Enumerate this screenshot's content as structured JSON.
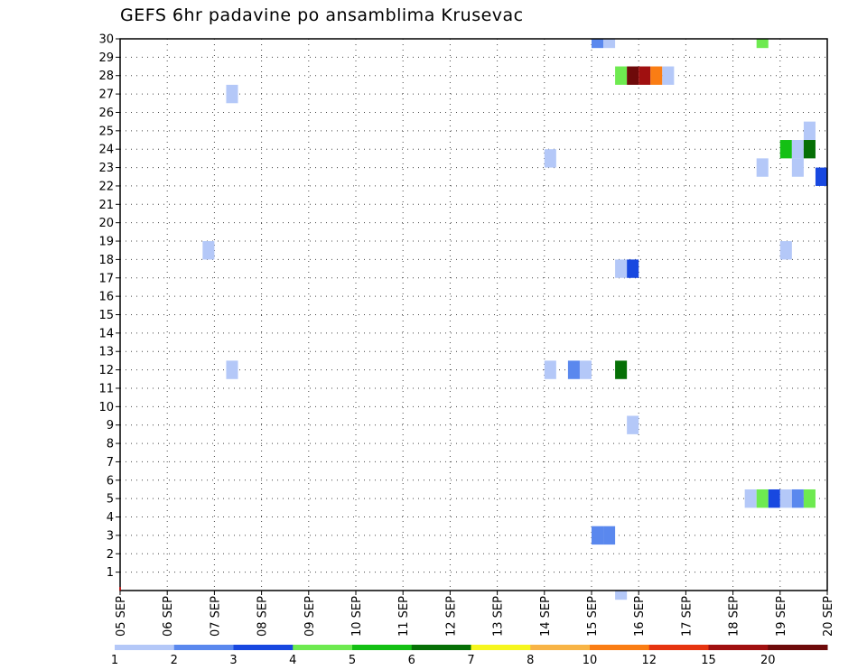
{
  "chart_data": {
    "type": "heatmap",
    "title": "GEFS 6hr padavine po ansamblima Krusevac",
    "xlabel": "",
    "ylabel": "",
    "x_tick_labels": [
      "05 SEP",
      "06 SEP",
      "07 SEP",
      "08 SEP",
      "09 SEP",
      "10 SEP",
      "11 SEP",
      "12 SEP",
      "13 SEP",
      "14 SEP",
      "15 SEP",
      "16 SEP",
      "17 SEP",
      "18 SEP",
      "19 SEP",
      "20 SEP"
    ],
    "x_range_days": [
      0,
      15
    ],
    "y_tick_labels": [
      "1",
      "2",
      "3",
      "4",
      "5",
      "6",
      "7",
      "8",
      "9",
      "10",
      "11",
      "12",
      "13",
      "14",
      "15",
      "16",
      "17",
      "18",
      "19",
      "20",
      "21",
      "22",
      "23",
      "24",
      "25",
      "26",
      "27",
      "28",
      "29",
      "30"
    ],
    "y_range": [
      0,
      30
    ],
    "grid": true,
    "time_step_hours": 6,
    "colorbar": {
      "labels": [
        "1",
        "2",
        "3",
        "4",
        "5",
        "6",
        "7",
        "8",
        "10",
        "12",
        "15",
        "20"
      ],
      "colors": [
        "#b4c8f8",
        "#5a88ee",
        "#1848e0",
        "#6eea50",
        "#14c014",
        "#067006",
        "#f6f61e",
        "#f8b446",
        "#fa7d14",
        "#e63410",
        "#a01010",
        "#6e0a0a"
      ]
    },
    "cells": [
      {
        "day": 2.25,
        "member_from": 26.5,
        "member_to": 27.5,
        "value": 1
      },
      {
        "day": 2.25,
        "member_from": 11.5,
        "member_to": 12.5,
        "value": 1
      },
      {
        "day": 1.75,
        "member_from": 18,
        "member_to": 19,
        "value": 1
      },
      {
        "day": 9.0,
        "member_from": 23,
        "member_to": 24,
        "value": 1
      },
      {
        "day": 9.0,
        "member_from": 11.5,
        "member_to": 12.5,
        "value": 1
      },
      {
        "day": 9.5,
        "member_from": 11.5,
        "member_to": 12.5,
        "value": 2
      },
      {
        "day": 9.75,
        "member_from": 11.5,
        "member_to": 12.5,
        "value": 1
      },
      {
        "day": 10.0,
        "member_from": 29.5,
        "member_to": 30,
        "value": 2
      },
      {
        "day": 10.25,
        "member_from": 29.5,
        "member_to": 30,
        "value": 1
      },
      {
        "day": 10.0,
        "member_from": 2.5,
        "member_to": 3.5,
        "value": 2
      },
      {
        "day": 10.25,
        "member_from": 2.5,
        "member_to": 3.5,
        "value": 2
      },
      {
        "day": 10.5,
        "member_from": 27.5,
        "member_to": 28.5,
        "value": 4
      },
      {
        "day": 10.75,
        "member_from": 27.5,
        "member_to": 28.5,
        "value": 20
      },
      {
        "day": 11.0,
        "member_from": 27.5,
        "member_to": 28.5,
        "value": 15
      },
      {
        "day": 11.25,
        "member_from": 27.5,
        "member_to": 28.5,
        "value": 10
      },
      {
        "day": 11.5,
        "member_from": 27.5,
        "member_to": 28.5,
        "value": 1
      },
      {
        "day": 10.5,
        "member_from": 17,
        "member_to": 18,
        "value": 1
      },
      {
        "day": 10.75,
        "member_from": 17,
        "member_to": 18,
        "value": 3
      },
      {
        "day": 10.5,
        "member_from": 11.5,
        "member_to": 12.5,
        "value": 6
      },
      {
        "day": 10.75,
        "member_from": 8.5,
        "member_to": 9.5,
        "value": 1
      },
      {
        "day": 10.5,
        "member_from": -0.5,
        "member_to": 0,
        "value": 1
      },
      {
        "day": 13.5,
        "member_from": 29.5,
        "member_to": 30,
        "value": 4
      },
      {
        "day": 14.5,
        "member_from": 24.5,
        "member_to": 25.5,
        "value": 1
      },
      {
        "day": 14.0,
        "member_from": 23.5,
        "member_to": 24.5,
        "value": 5
      },
      {
        "day": 14.25,
        "member_from": 23.5,
        "member_to": 24.5,
        "value": 1
      },
      {
        "day": 14.5,
        "member_from": 23.5,
        "member_to": 24.5,
        "value": 6
      },
      {
        "day": 13.5,
        "member_from": 22.5,
        "member_to": 23.5,
        "value": 1
      },
      {
        "day": 14.25,
        "member_from": 22.5,
        "member_to": 23.5,
        "value": 1
      },
      {
        "day": 14.75,
        "member_from": 22,
        "member_to": 23,
        "value": 3
      },
      {
        "day": 14.0,
        "member_from": 18,
        "member_to": 19,
        "value": 1
      },
      {
        "day": 13.25,
        "member_from": 4.5,
        "member_to": 5.5,
        "value": 1
      },
      {
        "day": 13.5,
        "member_from": 4.5,
        "member_to": 5.5,
        "value": 4
      },
      {
        "day": 13.75,
        "member_from": 4.5,
        "member_to": 5.5,
        "value": 3
      },
      {
        "day": 14.0,
        "member_from": 4.5,
        "member_to": 5.5,
        "value": 1
      },
      {
        "day": 14.25,
        "member_from": 4.5,
        "member_to": 5.5,
        "value": 2
      },
      {
        "day": 14.5,
        "member_from": 4.5,
        "member_to": 5.5,
        "value": 4
      }
    ]
  }
}
